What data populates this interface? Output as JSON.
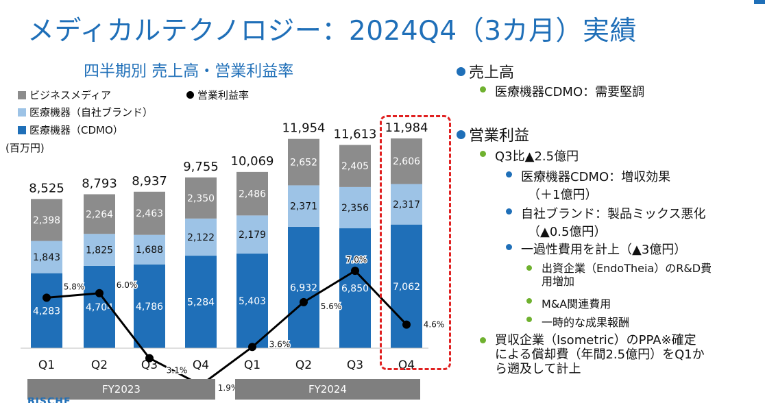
{
  "slide_title": "メディカルテクノロジー：2024Q4（3カ月）実績",
  "chart_data": {
    "type": "bar",
    "subtype": "stacked-bar-with-line",
    "title": "四半期別 売上高・営業利益率",
    "unit_label": "(百万円)",
    "categories": [
      "Q1",
      "Q2",
      "Q3",
      "Q4",
      "Q1",
      "Q2",
      "Q3",
      "Q4"
    ],
    "groups": [
      {
        "label": "FY2023",
        "categories": [
          "Q1",
          "Q2",
          "Q3",
          "Q4"
        ]
      },
      {
        "label": "FY2024",
        "categories": [
          "Q1",
          "Q2",
          "Q3",
          "Q4"
        ]
      }
    ],
    "series": [
      {
        "name": "医療機器（CDMO）",
        "color": "#1F6FB8",
        "values": [
          4283,
          4704,
          4786,
          5284,
          5403,
          6932,
          6850,
          7062
        ]
      },
      {
        "name": "医療機器（自社ブランド）",
        "color": "#9DC3E6",
        "values": [
          1843,
          1825,
          1688,
          2122,
          2179,
          2371,
          2356,
          2317
        ]
      },
      {
        "name": "ビジネスメディア",
        "color": "#8C8C8C",
        "values": [
          2398,
          2264,
          2463,
          2350,
          2486,
          2652,
          2405,
          2606
        ]
      }
    ],
    "totals": [
      8525,
      8793,
      8937,
      9755,
      10069,
      11954,
      11613,
      11984
    ],
    "line": {
      "name": "営業利益率",
      "color": "#000000",
      "values": [
        5.8,
        6.0,
        3.1,
        1.9,
        3.6,
        5.6,
        7.0,
        4.6
      ]
    },
    "ylim": [
      0,
      13000
    ],
    "line_ylim": [
      0,
      10
    ],
    "legend_position": "top-left"
  },
  "commentary": {
    "sales_heading": "売上高",
    "sales_point": "医療機器CDMO：需要堅調",
    "op_heading": "営業利益",
    "op_point1": "Q3比▲2.5億円",
    "sub1_line1": "医療機器CDMO：増収効果",
    "sub1_line2": "（＋1億円）",
    "sub2_line1": "自社ブランド：製品ミックス悪化",
    "sub2_line2": "（▲0.5億円）",
    "sub3": "一過性費用を計上（▲3億円）",
    "subsub1_line1": "出資企業（EndoTheia）のR&D費",
    "subsub1_line2": "用増加",
    "subsub2": "M&A関連費用",
    "subsub3": "一時的な成果報酬",
    "op_point2_line1": "買収企業（Isometric）のPPA※確定",
    "op_point2_line2": "による償却費（年間2.5億円）をQ1か",
    "op_point2_line3": "ら遡及して計上"
  },
  "logo_text": "BISCHE"
}
